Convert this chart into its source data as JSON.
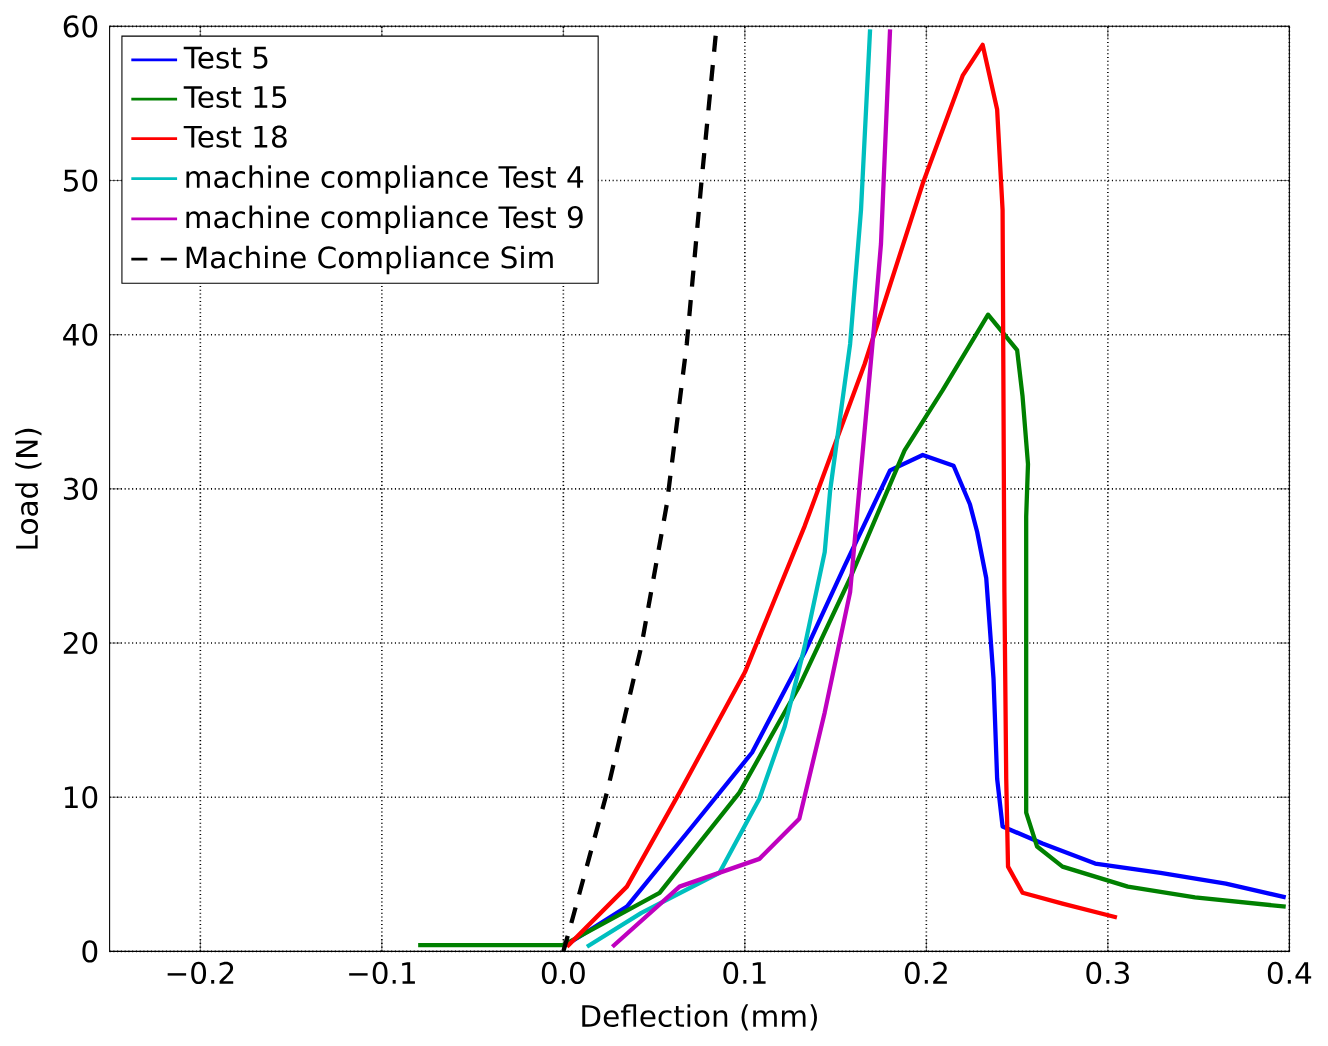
{
  "chart_data": {
    "type": "line",
    "xlabel": "Deflection (mm)",
    "ylabel": "Load (N)",
    "xlim": [
      -0.25,
      0.4
    ],
    "ylim": [
      0,
      60
    ],
    "xticks": [
      {
        "value": -0.2,
        "label": "−0.2"
      },
      {
        "value": -0.1,
        "label": "−0.1"
      },
      {
        "value": 0.0,
        "label": "0.0"
      },
      0.1,
      0.2,
      0.3,
      0.4
    ],
    "yticks": [
      0,
      10,
      20,
      30,
      40,
      50,
      60
    ],
    "grid": true,
    "legend": "top left",
    "series": [
      {
        "name": "Test 5",
        "color": "#0000ff",
        "x": [
          0.0,
          0.035,
          0.071,
          0.104,
          0.133,
          0.155,
          0.18,
          0.198,
          0.215,
          0.224,
          0.228,
          0.233,
          0.237,
          0.239,
          0.242,
          0.264,
          0.293,
          0.329,
          0.365,
          0.398
        ],
        "values": [
          0.3,
          2.9,
          8.1,
          12.9,
          19.4,
          25,
          31.2,
          32.2,
          31.5,
          29,
          27.2,
          24.2,
          17.7,
          11.2,
          8.1,
          7.0,
          5.7,
          5.1,
          4.4,
          3.5
        ]
      },
      {
        "name": "Test 15",
        "color": "#008000",
        "x": [
          -0.08,
          -0.04,
          0.0,
          0.053,
          0.097,
          0.13,
          0.158,
          0.188,
          0.209,
          0.234,
          0.25,
          0.253,
          0.256,
          0.255,
          0.255,
          0.261,
          0.275,
          0.311,
          0.348,
          0.398
        ],
        "values": [
          0.4,
          0.4,
          0.4,
          3.8,
          10.3,
          17.2,
          24.2,
          32.5,
          36.4,
          41.3,
          39,
          36,
          31.6,
          28.2,
          9.0,
          6.8,
          5.5,
          4.2,
          3.5,
          2.9
        ]
      },
      {
        "name": "Test 18",
        "color": "#ff0000",
        "x": [
          0.002,
          0.035,
          0.064,
          0.1,
          0.133,
          0.166,
          0.198,
          0.22,
          0.231,
          0.239,
          0.242,
          0.243,
          0.244,
          0.245,
          0.253,
          0.275,
          0.305
        ],
        "values": [
          0.3,
          4.2,
          10.3,
          18.1,
          27.6,
          38.1,
          49.8,
          56.8,
          58.8,
          54.6,
          48.1,
          23.3,
          11.2,
          5.5,
          3.8,
          3.1,
          2.2
        ]
      },
      {
        "name": "machine compliance Test 4",
        "color": "#00bfbf",
        "x": [
          0.013,
          0.043,
          0.086,
          0.108,
          0.122,
          0.133,
          0.144,
          0.147,
          0.158,
          0.164,
          0.169
        ],
        "values": [
          0.3,
          2.5,
          5.1,
          9.9,
          14.6,
          19.8,
          25.9,
          29.9,
          39.4,
          48.1,
          59.8
        ]
      },
      {
        "name": "machine compliance Test 9",
        "color": "#bf00bf",
        "x": [
          0.027,
          0.064,
          0.108,
          0.13,
          0.144,
          0.158,
          0.163,
          0.171,
          0.175,
          0.18
        ],
        "values": [
          0.3,
          4.2,
          6.0,
          8.6,
          15.5,
          23.3,
          29.9,
          40.3,
          45.9,
          59.8
        ]
      },
      {
        "name": "Machine Compliance Sim",
        "color": "#000000",
        "line_style": "dashed",
        "x": [
          0.0,
          0.005,
          0.024,
          0.043,
          0.057,
          0.068,
          0.076,
          0.084
        ],
        "values": [
          0,
          2.1,
          10.3,
          19.8,
          29,
          39.4,
          49.8,
          59.5
        ]
      }
    ]
  }
}
